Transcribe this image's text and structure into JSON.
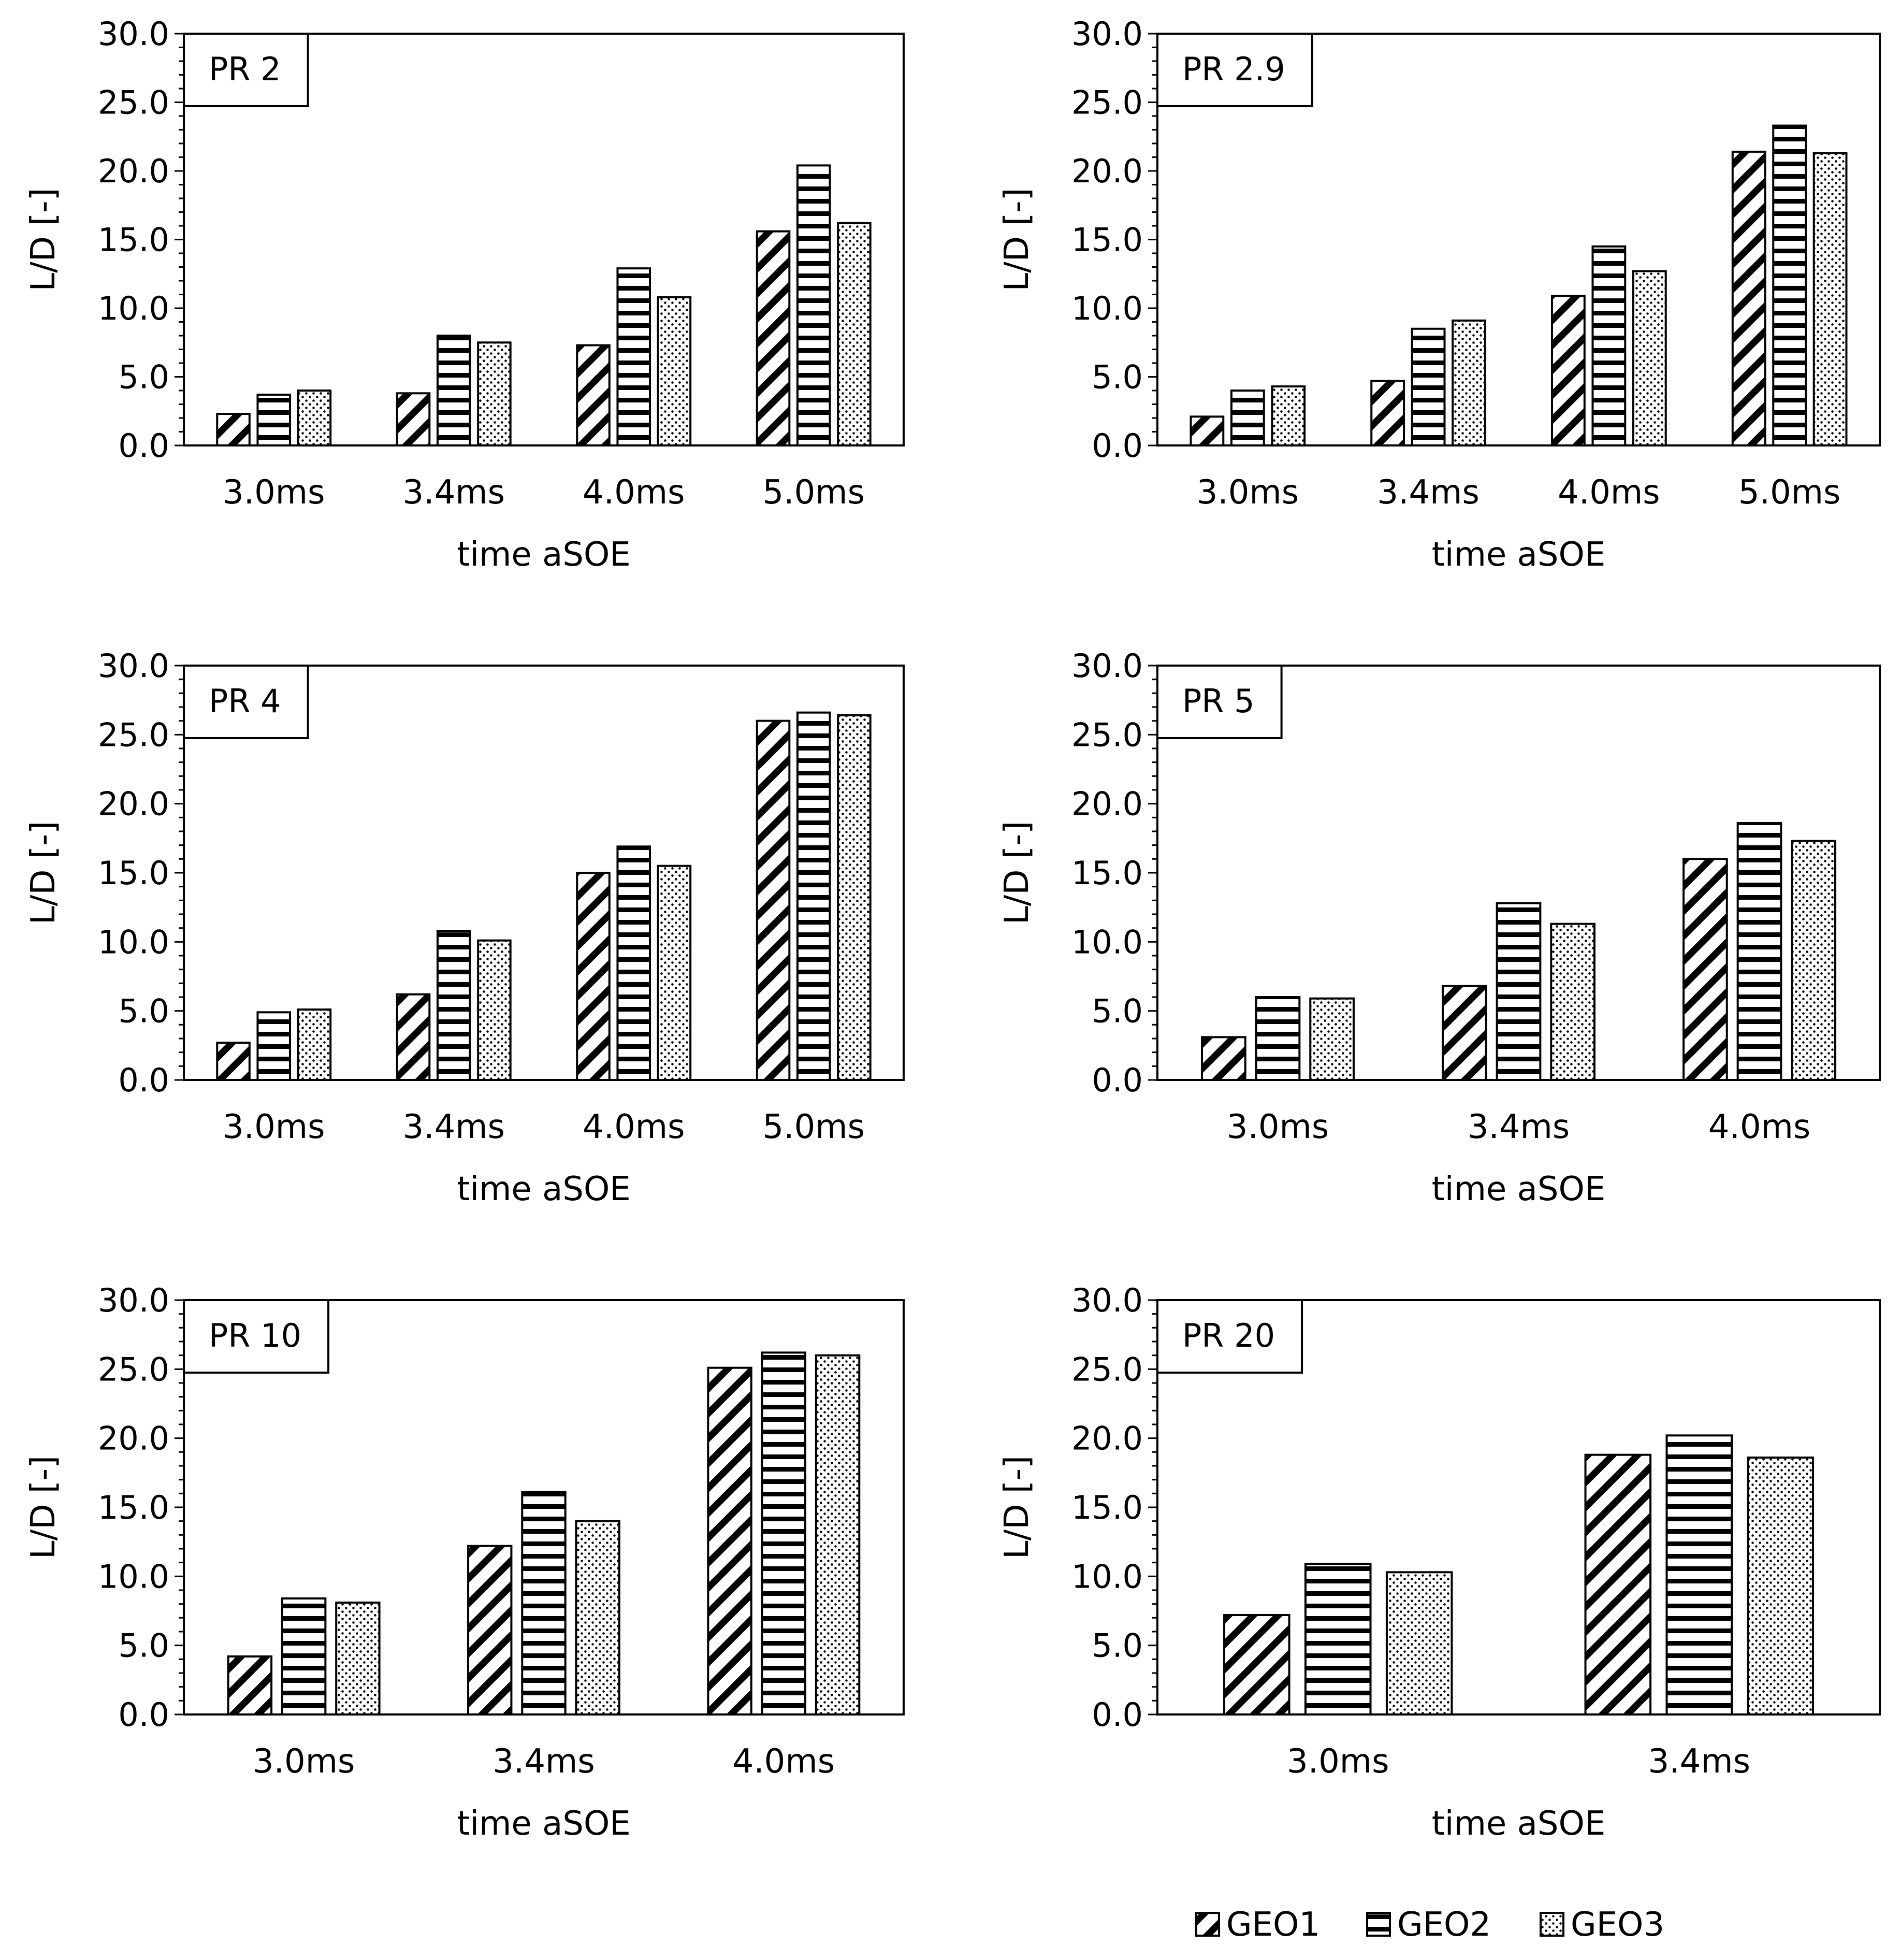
{
  "y_axis_label": "L/D [-]",
  "x_axis_label": "time aSOE",
  "legend": [
    {
      "name": "GEO1",
      "pattern": "diagonal-hatch"
    },
    {
      "name": "GEO2",
      "pattern": "horizontal-hatch"
    },
    {
      "name": "GEO3",
      "pattern": "dots"
    }
  ],
  "chart_data": [
    {
      "type": "bar",
      "title": "PR 2",
      "categories": [
        "3.0ms",
        "3.4ms",
        "4.0ms",
        "5.0ms"
      ],
      "series": [
        {
          "name": "GEO1",
          "values": [
            2.3,
            3.8,
            7.3,
            15.6
          ]
        },
        {
          "name": "GEO2",
          "values": [
            3.7,
            8.0,
            12.9,
            20.4
          ]
        },
        {
          "name": "GEO3",
          "values": [
            4.0,
            7.5,
            10.8,
            16.2
          ]
        }
      ],
      "xlabel": "time aSOE",
      "ylabel": "L/D [-]",
      "ylim": [
        0,
        30
      ],
      "yticks": [
        "0.0",
        "5.0",
        "10.0",
        "15.0",
        "20.0",
        "25.0",
        "30.0"
      ]
    },
    {
      "type": "bar",
      "title": "PR 2.9",
      "categories": [
        "3.0ms",
        "3.4ms",
        "4.0ms",
        "5.0ms"
      ],
      "series": [
        {
          "name": "GEO1",
          "values": [
            2.1,
            4.7,
            10.9,
            21.4
          ]
        },
        {
          "name": "GEO2",
          "values": [
            4.0,
            8.5,
            14.5,
            23.3
          ]
        },
        {
          "name": "GEO3",
          "values": [
            4.3,
            9.1,
            12.7,
            21.3
          ]
        }
      ],
      "xlabel": "time aSOE",
      "ylabel": "L/D [-]",
      "ylim": [
        0,
        30
      ],
      "yticks": [
        "0.0",
        "5.0",
        "10.0",
        "15.0",
        "20.0",
        "25.0",
        "30.0"
      ]
    },
    {
      "type": "bar",
      "title": "PR 4",
      "categories": [
        "3.0ms",
        "3.4ms",
        "4.0ms",
        "5.0ms"
      ],
      "series": [
        {
          "name": "GEO1",
          "values": [
            2.7,
            6.2,
            15.0,
            26.0
          ]
        },
        {
          "name": "GEO2",
          "values": [
            4.9,
            10.8,
            16.9,
            26.6
          ]
        },
        {
          "name": "GEO3",
          "values": [
            5.1,
            10.1,
            15.5,
            26.4
          ]
        }
      ],
      "xlabel": "time aSOE",
      "ylabel": "L/D [-]",
      "ylim": [
        0,
        30
      ],
      "yticks": [
        "0.0",
        "5.0",
        "10.0",
        "15.0",
        "20.0",
        "25.0",
        "30.0"
      ]
    },
    {
      "type": "bar",
      "title": "PR 5",
      "categories": [
        "3.0ms",
        "3.4ms",
        "4.0ms"
      ],
      "series": [
        {
          "name": "GEO1",
          "values": [
            3.1,
            6.8,
            16.0
          ]
        },
        {
          "name": "GEO2",
          "values": [
            6.0,
            12.8,
            18.6
          ]
        },
        {
          "name": "GEO3",
          "values": [
            5.9,
            11.3,
            17.3
          ]
        }
      ],
      "xlabel": "time aSOE",
      "ylabel": "L/D [-]",
      "ylim": [
        0,
        30
      ],
      "yticks": [
        "0.0",
        "5.0",
        "10.0",
        "15.0",
        "20.0",
        "25.0",
        "30.0"
      ]
    },
    {
      "type": "bar",
      "title": "PR 10",
      "categories": [
        "3.0ms",
        "3.4ms",
        "4.0ms"
      ],
      "series": [
        {
          "name": "GEO1",
          "values": [
            4.2,
            12.2,
            25.1
          ]
        },
        {
          "name": "GEO2",
          "values": [
            8.4,
            16.1,
            26.2
          ]
        },
        {
          "name": "GEO3",
          "values": [
            8.1,
            14.0,
            26.0
          ]
        }
      ],
      "xlabel": "time aSOE",
      "ylabel": "L/D [-]",
      "ylim": [
        0,
        30
      ],
      "yticks": [
        "0.0",
        "5.0",
        "10.0",
        "15.0",
        "20.0",
        "25.0",
        "30.0"
      ]
    },
    {
      "type": "bar",
      "title": "PR 20",
      "categories": [
        "3.0ms",
        "3.4ms"
      ],
      "series": [
        {
          "name": "GEO1",
          "values": [
            7.2,
            18.8
          ]
        },
        {
          "name": "GEO2",
          "values": [
            10.9,
            20.2
          ]
        },
        {
          "name": "GEO3",
          "values": [
            10.3,
            18.6
          ]
        }
      ],
      "xlabel": "time aSOE",
      "ylabel": "L/D [-]",
      "ylim": [
        0,
        30
      ],
      "yticks": [
        "0.0",
        "5.0",
        "10.0",
        "15.0",
        "20.0",
        "25.0",
        "30.0"
      ]
    }
  ]
}
